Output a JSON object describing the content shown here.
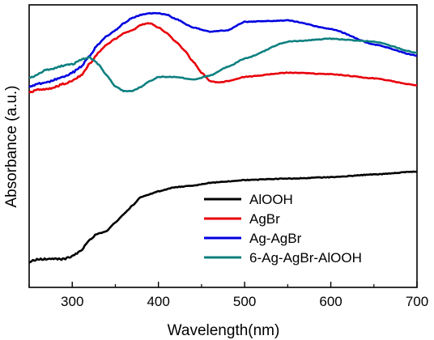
{
  "chart_data": {
    "type": "line",
    "title": "",
    "xlabel": "Wavelength(nm)",
    "ylabel": "Absorbance (a.u.)",
    "xlim": [
      250,
      700
    ],
    "ylim": [
      0,
      1
    ],
    "x_ticks": [
      "300",
      "400",
      "500",
      "600",
      "700"
    ],
    "x_tick_values": [
      300,
      400,
      500,
      600,
      700
    ],
    "y_ticks_labeled": false,
    "grid": false,
    "legend_position": "bottom-right",
    "series": [
      {
        "name": "AlOOH",
        "color": "#000000",
        "x": [
          250,
          260,
          270,
          280,
          290,
          300,
          310,
          320,
          330,
          340,
          350,
          360,
          370,
          380,
          390,
          400,
          420,
          440,
          460,
          480,
          500,
          550,
          600,
          650,
          700
        ],
        "y": [
          0.09,
          0.1,
          0.1,
          0.1,
          0.1,
          0.11,
          0.13,
          0.17,
          0.19,
          0.2,
          0.23,
          0.26,
          0.29,
          0.32,
          0.33,
          0.34,
          0.355,
          0.36,
          0.37,
          0.375,
          0.38,
          0.385,
          0.39,
          0.4,
          0.41
        ]
      },
      {
        "name": "AgBr",
        "color": "#e8000b",
        "x": [
          250,
          260,
          270,
          280,
          290,
          300,
          310,
          320,
          330,
          340,
          350,
          360,
          370,
          380,
          390,
          400,
          410,
          420,
          430,
          440,
          450,
          460,
          470,
          480,
          500,
          550,
          600,
          650,
          700
        ],
        "y": [
          0.69,
          0.7,
          0.7,
          0.71,
          0.72,
          0.73,
          0.75,
          0.79,
          0.83,
          0.86,
          0.88,
          0.9,
          0.91,
          0.93,
          0.935,
          0.92,
          0.9,
          0.87,
          0.84,
          0.8,
          0.76,
          0.73,
          0.725,
          0.73,
          0.745,
          0.76,
          0.755,
          0.74,
          0.715
        ]
      },
      {
        "name": "Ag-AgBr",
        "color": "#0000e0",
        "x": [
          250,
          260,
          270,
          280,
          290,
          300,
          310,
          320,
          330,
          340,
          350,
          360,
          370,
          380,
          390,
          400,
          410,
          420,
          440,
          460,
          480,
          500,
          550,
          600,
          650,
          700
        ],
        "y": [
          0.71,
          0.72,
          0.725,
          0.735,
          0.745,
          0.76,
          0.78,
          0.82,
          0.86,
          0.89,
          0.91,
          0.935,
          0.955,
          0.965,
          0.97,
          0.97,
          0.965,
          0.95,
          0.92,
          0.905,
          0.91,
          0.94,
          0.945,
          0.915,
          0.86,
          0.82
        ]
      },
      {
        "name": "6-Ag-AgBr-AlOOH",
        "color": "#0e8080",
        "x": [
          250,
          260,
          270,
          280,
          290,
          300,
          310,
          320,
          330,
          340,
          350,
          360,
          370,
          380,
          390,
          400,
          420,
          440,
          460,
          480,
          500,
          550,
          600,
          650,
          700
        ],
        "y": [
          0.74,
          0.755,
          0.77,
          0.775,
          0.785,
          0.79,
          0.805,
          0.815,
          0.79,
          0.75,
          0.71,
          0.695,
          0.695,
          0.71,
          0.73,
          0.745,
          0.745,
          0.735,
          0.75,
          0.78,
          0.81,
          0.87,
          0.88,
          0.87,
          0.83
        ]
      }
    ]
  }
}
